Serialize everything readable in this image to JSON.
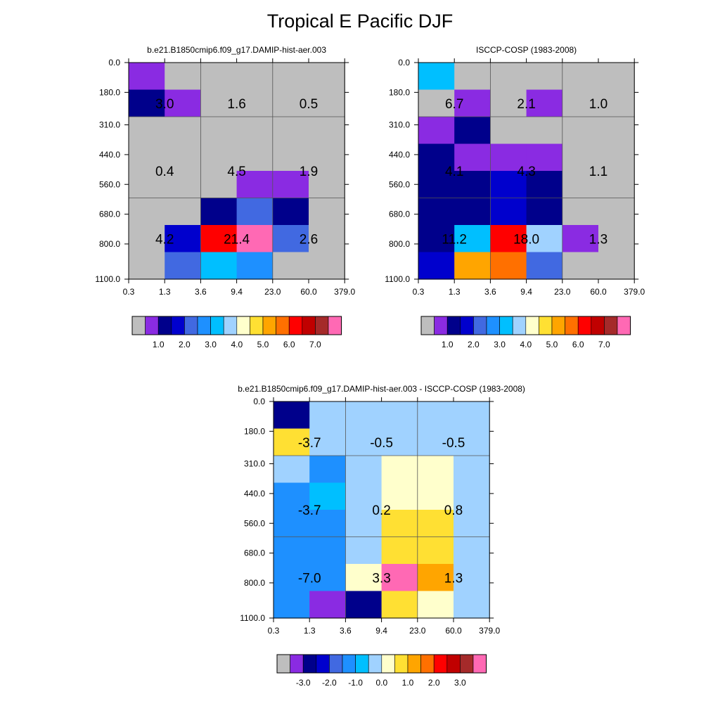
{
  "title": "Tropical E Pacific DJF",
  "colors": {
    "missing": "#BEBEBE",
    "palette": [
      "#BEBEBE",
      "#8A2BE2",
      "#00008B",
      "#0000CD",
      "#4169E1",
      "#1E90FF",
      "#00BFFF",
      "#A0D2FF",
      "#FFFFCC",
      "#FFE033",
      "#FFA500",
      "#FF7000",
      "#FF0000",
      "#C00000",
      "#A52A2A",
      "#FF69B4"
    ],
    "grid": "#555555"
  },
  "chart_data": [
    {
      "id": "model",
      "type": "heatmap",
      "title": "b.e21.B1850cmip6.f09_g17.DAMIP-hist-aer.003",
      "xticklabels": [
        "0.3",
        "1.3",
        "3.6",
        "9.4",
        "23.0",
        "60.0",
        "379.0"
      ],
      "yticklabels": [
        "0.0",
        "180.0",
        "310.0",
        "440.0",
        "560.0",
        "680.0",
        "800.0",
        "1100.0"
      ],
      "cell_color_index": [
        [
          1,
          0,
          0,
          0,
          0,
          0
        ],
        [
          2,
          1,
          0,
          0,
          0,
          0
        ],
        [
          0,
          0,
          0,
          0,
          0,
          0
        ],
        [
          0,
          0,
          0,
          0,
          0,
          0
        ],
        [
          0,
          0,
          0,
          1,
          1,
          0
        ],
        [
          0,
          0,
          2,
          4,
          2,
          0
        ],
        [
          0,
          3,
          12,
          15,
          4,
          0
        ],
        [
          0,
          4,
          6,
          5,
          0,
          0
        ]
      ],
      "annotations": [
        {
          "row": 0,
          "col": 0,
          "value": "3.0"
        },
        {
          "row": 0,
          "col": 1,
          "value": "1.6"
        },
        {
          "row": 0,
          "col": 2,
          "value": "0.5"
        },
        {
          "row": 1,
          "col": 0,
          "value": "0.4"
        },
        {
          "row": 1,
          "col": 1,
          "value": "4.5"
        },
        {
          "row": 1,
          "col": 2,
          "value": "1.9"
        },
        {
          "row": 2,
          "col": 0,
          "value": "4.2"
        },
        {
          "row": 2,
          "col": 1,
          "value": "21.4"
        },
        {
          "row": 2,
          "col": 2,
          "value": "2.6"
        }
      ],
      "colorbar_labels": [
        "1.0",
        "2.0",
        "3.0",
        "4.0",
        "5.0",
        "6.0",
        "7.0"
      ]
    },
    {
      "id": "obs",
      "type": "heatmap",
      "title": "ISCCP-COSP (1983-2008)",
      "xticklabels": [
        "0.3",
        "1.3",
        "3.6",
        "9.4",
        "23.0",
        "60.0",
        "379.0"
      ],
      "yticklabels": [
        "0.0",
        "180.0",
        "310.0",
        "440.0",
        "560.0",
        "680.0",
        "800.0",
        "1100.0"
      ],
      "cell_color_index": [
        [
          6,
          0,
          0,
          0,
          0,
          0
        ],
        [
          0,
          1,
          0,
          1,
          0,
          0
        ],
        [
          1,
          2,
          0,
          0,
          0,
          0
        ],
        [
          2,
          1,
          1,
          1,
          0,
          0
        ],
        [
          2,
          2,
          3,
          2,
          0,
          0
        ],
        [
          2,
          2,
          3,
          2,
          0,
          0
        ],
        [
          2,
          6,
          12,
          7,
          1,
          0
        ],
        [
          3,
          10,
          11,
          4,
          0,
          0
        ]
      ],
      "annotations": [
        {
          "row": 0,
          "col": 0,
          "value": "6.7"
        },
        {
          "row": 0,
          "col": 1,
          "value": "2.1"
        },
        {
          "row": 0,
          "col": 2,
          "value": "1.0"
        },
        {
          "row": 1,
          "col": 0,
          "value": "4.1"
        },
        {
          "row": 1,
          "col": 1,
          "value": "4.3"
        },
        {
          "row": 1,
          "col": 2,
          "value": "1.1"
        },
        {
          "row": 2,
          "col": 0,
          "value": "11.2"
        },
        {
          "row": 2,
          "col": 1,
          "value": "18.0"
        },
        {
          "row": 2,
          "col": 2,
          "value": "1.3"
        }
      ],
      "colorbar_labels": [
        "1.0",
        "2.0",
        "3.0",
        "4.0",
        "5.0",
        "6.0",
        "7.0"
      ]
    },
    {
      "id": "diff",
      "type": "heatmap",
      "title": "b.e21.B1850cmip6.f09_g17.DAMIP-hist-aer.003 - ISCCP-COSP (1983-2008)",
      "xticklabels": [
        "0.3",
        "1.3",
        "3.6",
        "9.4",
        "23.0",
        "60.0",
        "379.0"
      ],
      "yticklabels": [
        "0.0",
        "180.0",
        "310.0",
        "440.0",
        "560.0",
        "680.0",
        "800.0",
        "1100.0"
      ],
      "cell_color_index": [
        [
          2,
          7,
          7,
          7,
          7,
          7
        ],
        [
          9,
          7,
          7,
          7,
          7,
          7
        ],
        [
          7,
          5,
          7,
          8,
          8,
          7
        ],
        [
          5,
          6,
          7,
          8,
          8,
          7
        ],
        [
          5,
          5,
          7,
          9,
          9,
          7
        ],
        [
          5,
          5,
          7,
          9,
          9,
          7
        ],
        [
          5,
          5,
          8,
          15,
          10,
          7
        ],
        [
          5,
          1,
          2,
          9,
          8,
          7
        ]
      ],
      "annotations": [
        {
          "row": 0,
          "col": 0,
          "value": "-3.7"
        },
        {
          "row": 0,
          "col": 1,
          "value": "-0.5"
        },
        {
          "row": 0,
          "col": 2,
          "value": "-0.5"
        },
        {
          "row": 1,
          "col": 0,
          "value": "-3.7"
        },
        {
          "row": 1,
          "col": 1,
          "value": "0.2"
        },
        {
          "row": 1,
          "col": 2,
          "value": "0.8"
        },
        {
          "row": 2,
          "col": 0,
          "value": "-7.0"
        },
        {
          "row": 2,
          "col": 1,
          "value": "3.3"
        },
        {
          "row": 2,
          "col": 2,
          "value": "1.3"
        }
      ],
      "colorbar_labels": [
        "-3.0",
        "-2.0",
        "-1.0",
        "0.0",
        "1.0",
        "2.0",
        "3.0"
      ]
    }
  ]
}
